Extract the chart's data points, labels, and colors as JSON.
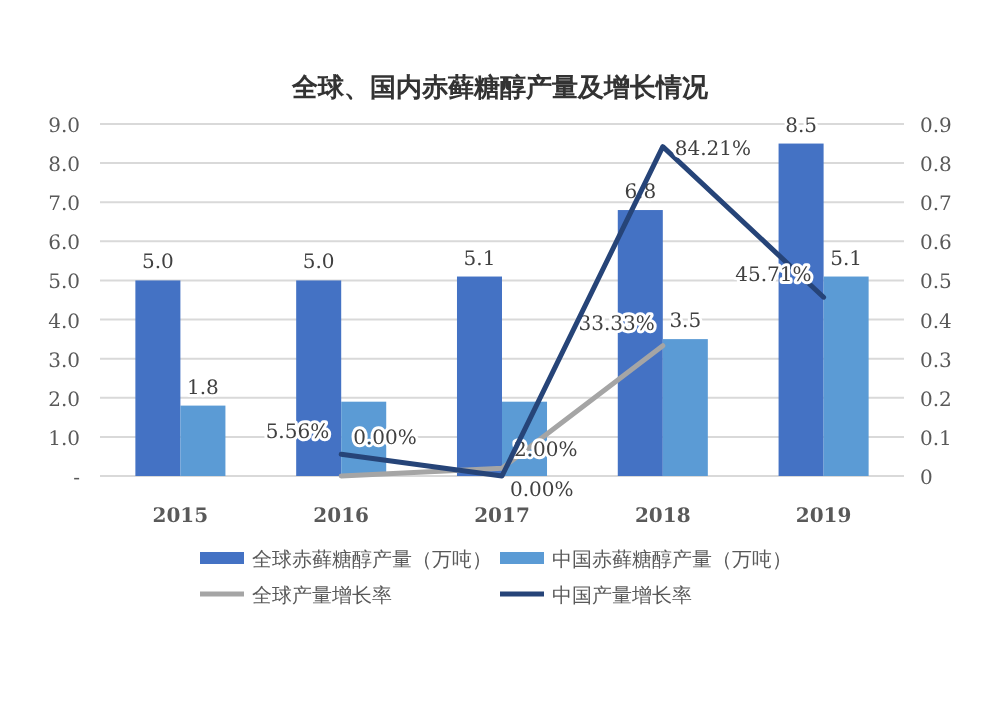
{
  "chart_data": {
    "type": "bar",
    "title": "全球、国内赤藓糖醇产量及增长情况",
    "categories": [
      "2015",
      "2016",
      "2017",
      "2018",
      "2019"
    ],
    "series": [
      {
        "name": "全球赤藓糖醇产量（万吨）",
        "color": "#4472c4",
        "values": [
          5.0,
          5.0,
          5.1,
          6.8,
          8.5
        ],
        "value_labels": [
          "5.0",
          "5.0",
          "5.1",
          "6.8",
          "8.5"
        ]
      },
      {
        "name": "中国赤藓糖醇产量（万吨）",
        "color": "#5b9bd5",
        "values": [
          1.8,
          1.9,
          1.9,
          3.5,
          5.1
        ],
        "value_labels": [
          "1.8",
          null,
          null,
          "3.5",
          "5.1"
        ]
      },
      {
        "name": "全球产量增长率",
        "type": "line",
        "axis": "y2",
        "color": "#a5a5a5",
        "values": [
          null,
          0,
          0.02,
          0.3333,
          null
        ],
        "value_labels": [
          null,
          "0.00%",
          "2.00%",
          "33.33%",
          null
        ]
      },
      {
        "name": "中国产量增长率",
        "type": "line",
        "axis": "y2",
        "color": "#264478",
        "values": [
          null,
          0.0556,
          0,
          0.8421,
          0.4571
        ],
        "value_labels": [
          null,
          "5.56%",
          "0.00%",
          "84.21%",
          "45.71%"
        ]
      }
    ],
    "ylim": [
      0,
      9
    ],
    "yticks": [
      {
        "value": 0,
        "label": "-"
      },
      {
        "value": 1,
        "label": "1.0"
      },
      {
        "value": 2,
        "label": "2.0"
      },
      {
        "value": 3,
        "label": "3.0"
      },
      {
        "value": 4,
        "label": "4.0"
      },
      {
        "value": 5,
        "label": "5.0"
      },
      {
        "value": 6,
        "label": "6.0"
      },
      {
        "value": 7,
        "label": "7.0"
      },
      {
        "value": 8,
        "label": "8.0"
      },
      {
        "value": 9,
        "label": "9.0"
      }
    ],
    "y2lim": [
      0,
      0.9
    ],
    "y2ticks": [
      0,
      0.1,
      0.2,
      0.3,
      0.4,
      0.5,
      0.6,
      0.7,
      0.8,
      0.9
    ],
    "grid": "y",
    "legend": "bottom",
    "marker": "none"
  }
}
